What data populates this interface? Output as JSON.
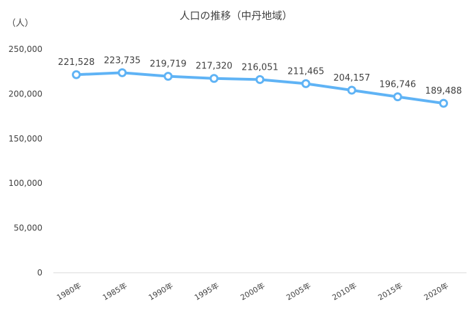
{
  "chart_data": {
    "type": "line",
    "title": "人口の推移（中丹地域）",
    "ylabel": "（人）",
    "xlabel": "",
    "categories": [
      "1980年",
      "1985年",
      "1990年",
      "1995年",
      "2000年",
      "2005年",
      "2010年",
      "2015年",
      "2020年"
    ],
    "series": [
      {
        "values": [
          221528,
          223735,
          219719,
          217320,
          216051,
          211465,
          204157,
          196746,
          189488
        ],
        "labels": [
          "221,528",
          "223,735",
          "219,719",
          "217,320",
          "216,051",
          "211,465",
          "204,157",
          "196,746",
          "189,488"
        ]
      }
    ],
    "ylim": [
      0,
      250000
    ],
    "yticks": [
      0,
      50000,
      100000,
      150000,
      200000,
      250000
    ],
    "ytick_labels": [
      "0",
      "50,000",
      "100,000",
      "150,000",
      "200,000",
      "250,000"
    ],
    "grid": false,
    "line_color": "#5fb3f5",
    "marker_fill": "#ffffff"
  }
}
